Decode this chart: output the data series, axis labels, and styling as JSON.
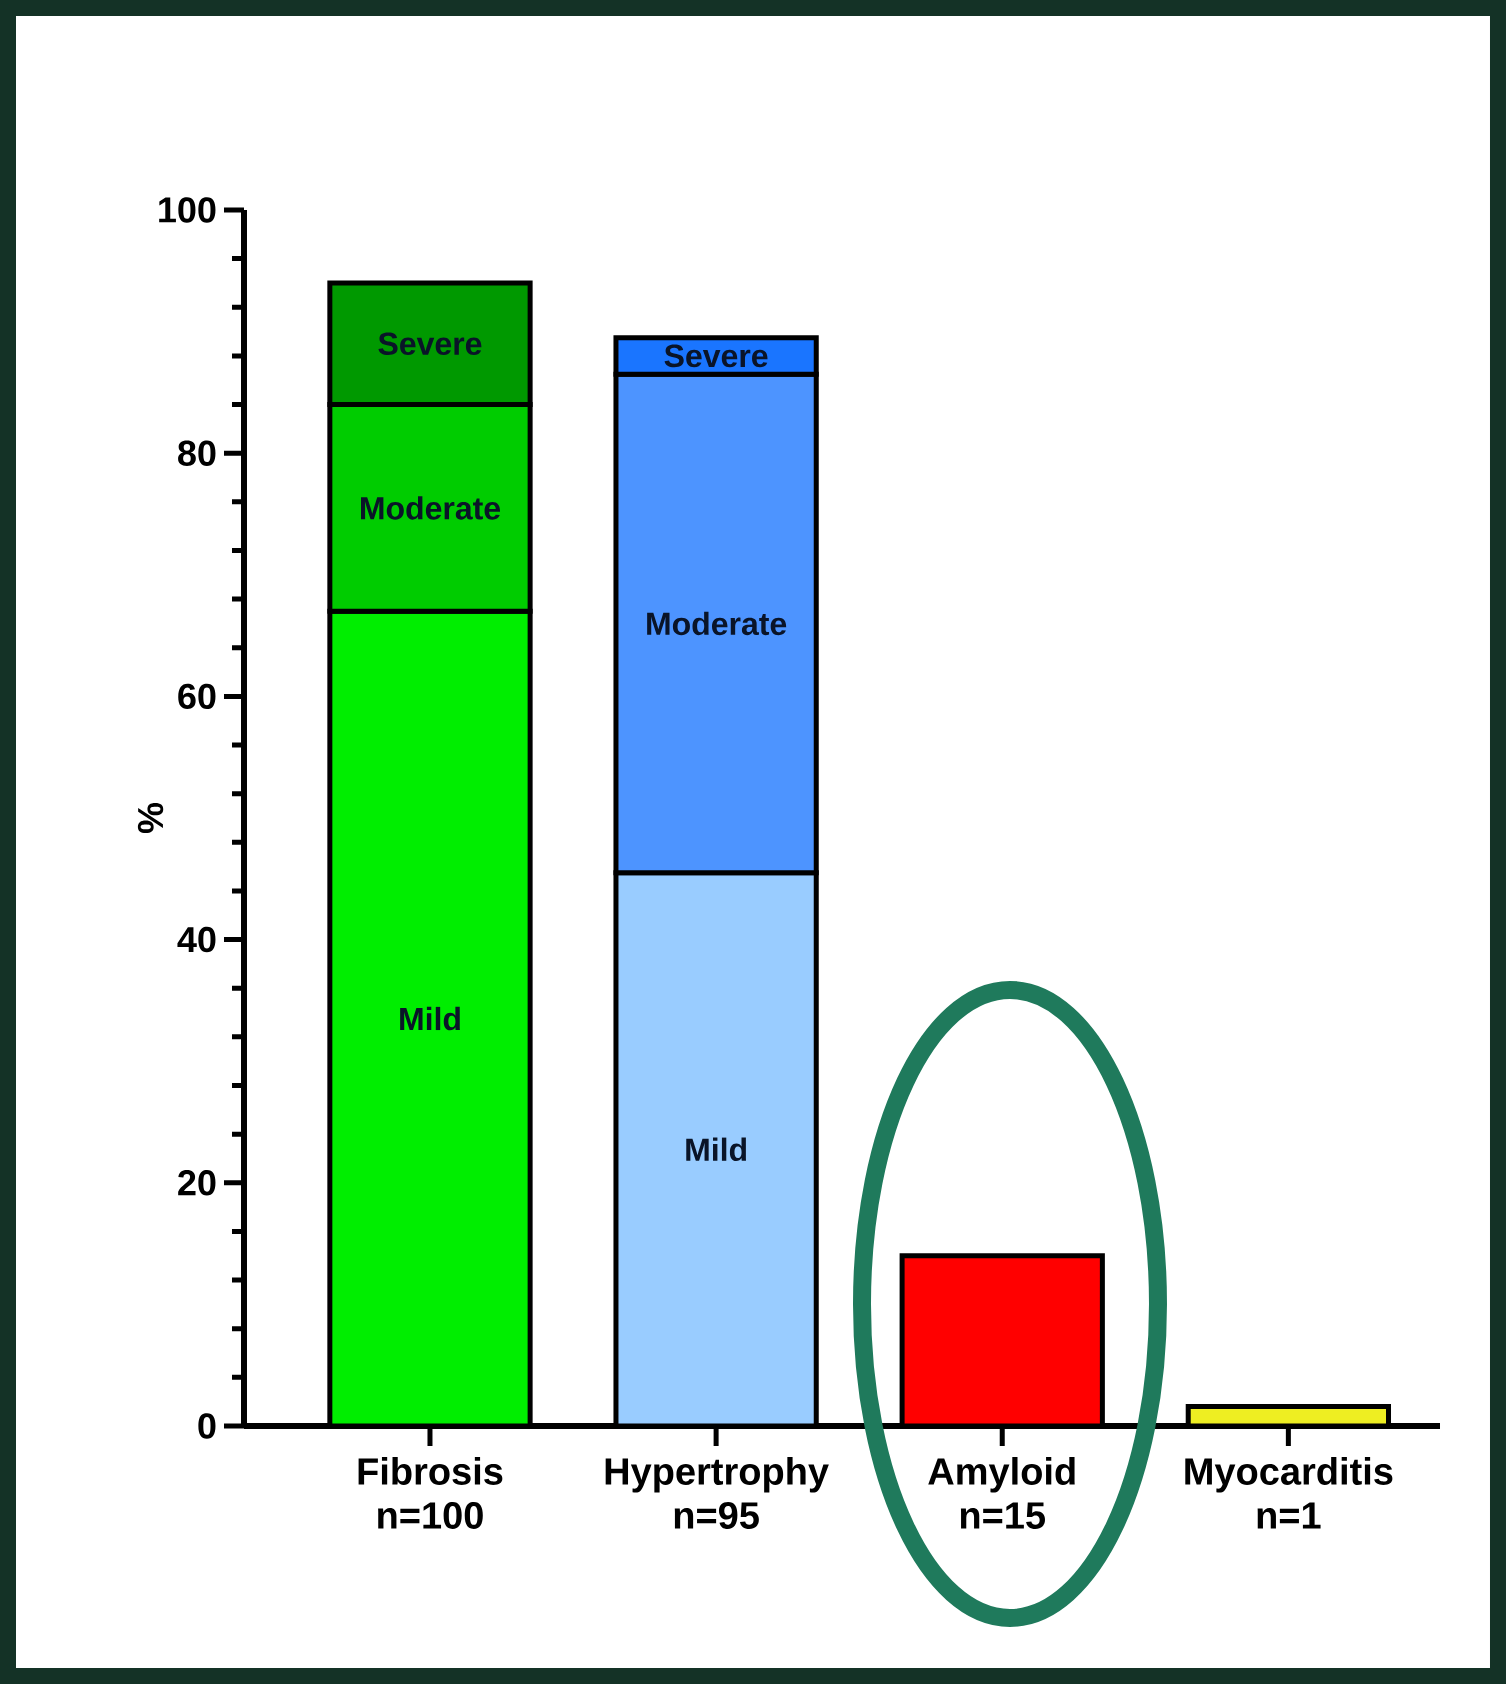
{
  "chart_data": {
    "type": "bar",
    "stacked": true,
    "ylabel": "%",
    "categories": [
      "Fibrosis n=100",
      "Hypertrophy n=95",
      "Amyloid n=15",
      "Myocarditis n=1"
    ],
    "series": [
      {
        "values": [
          67,
          45.5,
          14,
          1.6
        ],
        "colors": [
          "#00ee00",
          "#99ccff",
          "#ff0000",
          "#eeee22"
        ]
      },
      {
        "values": [
          17,
          41,
          null,
          null
        ],
        "colors": [
          "#00cc00",
          "#4d94ff",
          null,
          null
        ]
      },
      {
        "values": [
          10,
          3,
          null,
          null
        ],
        "colors": [
          "#009900",
          "#1a75ff",
          null,
          null
        ]
      }
    ],
    "annotations": [
      "Mild",
      "Moderate",
      "Severe",
      "Mild",
      "Moderate",
      "Severe"
    ],
    "ylim": [
      0,
      100
    ],
    "yticks": [
      0,
      20,
      40,
      60,
      80,
      100
    ]
  }
}
